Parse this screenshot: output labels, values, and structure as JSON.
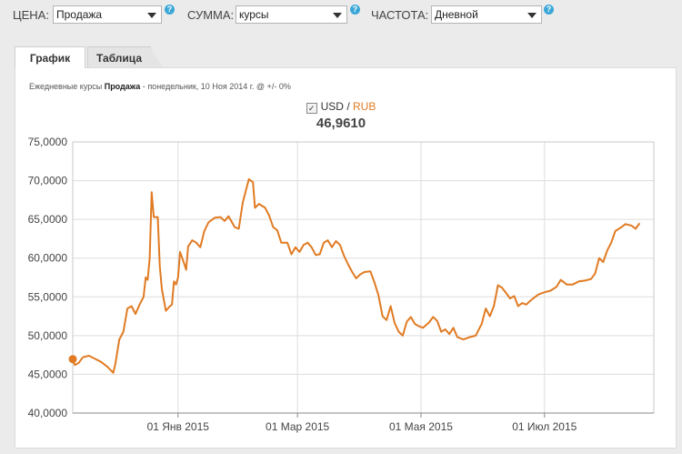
{
  "filters": {
    "price_label": "ЦЕНА:",
    "price_value": "Продажа",
    "sum_label": "СУММА:",
    "sum_value": "курсы",
    "freq_label": "ЧАСТОТА:",
    "freq_value": "Дневной",
    "help": "?"
  },
  "tabs": {
    "chart": "График",
    "table": "Таблица"
  },
  "subtitle": {
    "prefix": "Ежедневные курсы",
    "type": "Продажа",
    "sep": "-",
    "date": "понедельник, 10 Ноя 2014 г.",
    "suffix": "@ +/- 0%"
  },
  "legend": {
    "checkmark": "✓",
    "base": "USD",
    "slash": " / ",
    "quote": "RUB",
    "value": "46,9610"
  },
  "colors": {
    "line": "#e07b23",
    "grid": "#dddddd",
    "axis": "#888888"
  },
  "chart_data": {
    "type": "line",
    "xlabel": "",
    "ylabel": "",
    "ylim": [
      40000,
      75000
    ],
    "yticks": [
      40000,
      45000,
      50000,
      55000,
      60000,
      65000,
      70000,
      75000
    ],
    "ytick_labels": [
      "40,0000",
      "45,0000",
      "50,0000",
      "55,0000",
      "60,0000",
      "65,0000",
      "70,0000",
      "75,0000"
    ],
    "xlim": [
      "2014-11-10",
      "2015-08-24"
    ],
    "xticks": [
      "2015-01-01",
      "2015-03-01",
      "2015-05-01",
      "2015-07-01"
    ],
    "xtick_labels": [
      "01 Янв 2015",
      "01 Мар 2015",
      "01 Мая 2015",
      "01 Июл 2015"
    ],
    "marker": {
      "x": "2014-11-10",
      "y": 46961
    },
    "series": [
      {
        "points": [
          [
            "2014-11-10",
            46961
          ],
          [
            "2014-11-11",
            46200
          ],
          [
            "2014-11-13",
            46500
          ],
          [
            "2014-11-15",
            47200
          ],
          [
            "2014-11-18",
            47400
          ],
          [
            "2014-11-21",
            47000
          ],
          [
            "2014-11-24",
            46600
          ],
          [
            "2014-11-27",
            46000
          ],
          [
            "2014-11-30",
            45200
          ],
          [
            "2014-12-01",
            46300
          ],
          [
            "2014-12-03",
            49500
          ],
          [
            "2014-12-05",
            50500
          ],
          [
            "2014-12-07",
            53500
          ],
          [
            "2014-12-09",
            53800
          ],
          [
            "2014-12-11",
            52800
          ],
          [
            "2014-12-13",
            54000
          ],
          [
            "2014-12-15",
            55000
          ],
          [
            "2014-12-16",
            57500
          ],
          [
            "2014-12-17",
            57200
          ],
          [
            "2014-12-18",
            60000
          ],
          [
            "2014-12-19",
            68500
          ],
          [
            "2014-12-20",
            65300
          ],
          [
            "2014-12-22",
            65300
          ],
          [
            "2014-12-23",
            59000
          ],
          [
            "2014-12-24",
            56000
          ],
          [
            "2014-12-26",
            53200
          ],
          [
            "2014-12-28",
            53800
          ],
          [
            "2014-12-29",
            54000
          ],
          [
            "2014-12-30",
            57000
          ],
          [
            "2014-12-31",
            56600
          ],
          [
            "2015-01-01",
            57500
          ],
          [
            "2015-01-02",
            60800
          ],
          [
            "2015-01-04",
            59300
          ],
          [
            "2015-01-05",
            58500
          ],
          [
            "2015-01-06",
            61500
          ],
          [
            "2015-01-08",
            62300
          ],
          [
            "2015-01-10",
            62000
          ],
          [
            "2015-01-12",
            61400
          ],
          [
            "2015-01-14",
            63500
          ],
          [
            "2015-01-16",
            64600
          ],
          [
            "2015-01-19",
            65200
          ],
          [
            "2015-01-22",
            65300
          ],
          [
            "2015-01-24",
            64800
          ],
          [
            "2015-01-26",
            65400
          ],
          [
            "2015-01-29",
            64000
          ],
          [
            "2015-01-31",
            63800
          ],
          [
            "2015-02-02",
            67200
          ],
          [
            "2015-02-05",
            70200
          ],
          [
            "2015-02-07",
            69800
          ],
          [
            "2015-02-08",
            66500
          ],
          [
            "2015-02-10",
            67000
          ],
          [
            "2015-02-13",
            66500
          ],
          [
            "2015-02-15",
            65500
          ],
          [
            "2015-02-17",
            64000
          ],
          [
            "2015-02-19",
            63600
          ],
          [
            "2015-02-21",
            62000
          ],
          [
            "2015-02-24",
            62000
          ],
          [
            "2015-02-26",
            60500
          ],
          [
            "2015-02-28",
            61400
          ],
          [
            "2015-03-02",
            60800
          ],
          [
            "2015-03-04",
            61700
          ],
          [
            "2015-03-06",
            62000
          ],
          [
            "2015-03-08",
            61400
          ],
          [
            "2015-03-10",
            60400
          ],
          [
            "2015-03-12",
            60500
          ],
          [
            "2015-03-14",
            62000
          ],
          [
            "2015-03-16",
            62300
          ],
          [
            "2015-03-18",
            61400
          ],
          [
            "2015-03-20",
            62200
          ],
          [
            "2015-03-22",
            61700
          ],
          [
            "2015-03-24",
            60300
          ],
          [
            "2015-03-26",
            59200
          ],
          [
            "2015-03-28",
            58200
          ],
          [
            "2015-03-30",
            57400
          ],
          [
            "2015-04-01",
            57900
          ],
          [
            "2015-04-03",
            58200
          ],
          [
            "2015-04-06",
            58300
          ],
          [
            "2015-04-08",
            56900
          ],
          [
            "2015-04-10",
            55200
          ],
          [
            "2015-04-12",
            52500
          ],
          [
            "2015-04-14",
            52000
          ],
          [
            "2015-04-16",
            53800
          ],
          [
            "2015-04-18",
            51600
          ],
          [
            "2015-04-20",
            50500
          ],
          [
            "2015-04-22",
            50000
          ],
          [
            "2015-04-24",
            51800
          ],
          [
            "2015-04-26",
            52400
          ],
          [
            "2015-04-28",
            51500
          ],
          [
            "2015-04-30",
            51200
          ],
          [
            "2015-05-02",
            51000
          ],
          [
            "2015-05-05",
            51700
          ],
          [
            "2015-05-07",
            52400
          ],
          [
            "2015-05-09",
            51900
          ],
          [
            "2015-05-11",
            50500
          ],
          [
            "2015-05-13",
            50800
          ],
          [
            "2015-05-15",
            50200
          ],
          [
            "2015-05-17",
            51000
          ],
          [
            "2015-05-19",
            49800
          ],
          [
            "2015-05-22",
            49500
          ],
          [
            "2015-05-25",
            49800
          ],
          [
            "2015-05-28",
            50000
          ],
          [
            "2015-05-31",
            51500
          ],
          [
            "2015-06-02",
            53500
          ],
          [
            "2015-06-04",
            52500
          ],
          [
            "2015-06-06",
            53800
          ],
          [
            "2015-06-08",
            56500
          ],
          [
            "2015-06-10",
            56200
          ],
          [
            "2015-06-12",
            55500
          ],
          [
            "2015-06-14",
            54800
          ],
          [
            "2015-06-16",
            55100
          ],
          [
            "2015-06-18",
            53800
          ],
          [
            "2015-06-20",
            54200
          ],
          [
            "2015-06-22",
            54000
          ],
          [
            "2015-06-24",
            54500
          ],
          [
            "2015-06-26",
            54900
          ],
          [
            "2015-06-28",
            55300
          ],
          [
            "2015-07-01",
            55600
          ],
          [
            "2015-07-04",
            55800
          ],
          [
            "2015-07-07",
            56300
          ],
          [
            "2015-07-09",
            57200
          ],
          [
            "2015-07-12",
            56600
          ],
          [
            "2015-07-15",
            56600
          ],
          [
            "2015-07-18",
            57000
          ],
          [
            "2015-07-21",
            57100
          ],
          [
            "2015-07-24",
            57300
          ],
          [
            "2015-07-26",
            58000
          ],
          [
            "2015-07-28",
            60000
          ],
          [
            "2015-07-30",
            59500
          ],
          [
            "2015-08-01",
            61000
          ],
          [
            "2015-08-03",
            62000
          ],
          [
            "2015-08-05",
            63500
          ],
          [
            "2015-08-08",
            64000
          ],
          [
            "2015-08-10",
            64400
          ],
          [
            "2015-08-13",
            64200
          ],
          [
            "2015-08-15",
            63800
          ],
          [
            "2015-08-17",
            64500
          ]
        ]
      }
    ]
  }
}
